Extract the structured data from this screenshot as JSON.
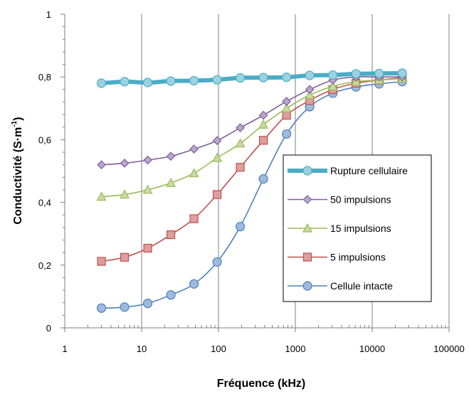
{
  "chart_data": {
    "type": "line",
    "xlabel": "Fréquence (kHz)",
    "ylabel_main": "Conductivité (S·m",
    "ylabel_sup": "-1",
    "ylabel_close": ")",
    "x_scale": "log",
    "xlim": [
      1,
      100000
    ],
    "ylim": [
      0,
      1
    ],
    "x_ticks": [
      1,
      10,
      100,
      1000,
      10000,
      100000
    ],
    "x_tick_labels": [
      "1",
      "10",
      "100",
      "1000",
      "10000",
      "100000"
    ],
    "y_ticks": [
      0,
      0.2,
      0.4,
      0.6,
      0.8,
      1
    ],
    "y_tick_labels": [
      "0",
      "0,2",
      "0,4",
      "0,6",
      "0,8",
      "1"
    ],
    "grid": "vertical major",
    "legend_position": "inside right",
    "x": [
      3,
      6,
      12,
      24,
      48,
      96,
      192,
      384,
      768,
      1536,
      3072,
      6144,
      12288,
      24576
    ],
    "series": [
      {
        "name": "Rupture cellulaire",
        "color": "#4bacc6",
        "marker": "circle-thick",
        "values": [
          0.78,
          0.785,
          0.782,
          0.787,
          0.788,
          0.791,
          0.797,
          0.798,
          0.799,
          0.805,
          0.806,
          0.81,
          0.811,
          0.812
        ]
      },
      {
        "name": "50 impulsions",
        "color": "#7f5f9f",
        "marker": "diamond",
        "values": [
          0.52,
          0.525,
          0.535,
          0.547,
          0.57,
          0.597,
          0.638,
          0.678,
          0.722,
          0.76,
          0.79,
          0.8,
          0.8,
          0.8
        ]
      },
      {
        "name": "15 impulsions",
        "color": "#9bbb59",
        "marker": "triangle",
        "values": [
          0.418,
          0.425,
          0.44,
          0.462,
          0.493,
          0.542,
          0.588,
          0.648,
          0.7,
          0.742,
          0.77,
          0.785,
          0.79,
          0.795
        ]
      },
      {
        "name": "5 impulsions",
        "color": "#c0504d",
        "marker": "square",
        "values": [
          0.212,
          0.225,
          0.254,
          0.297,
          0.348,
          0.425,
          0.512,
          0.598,
          0.678,
          0.725,
          0.76,
          0.78,
          0.79,
          0.798
        ]
      },
      {
        "name": "Cellule intacte",
        "color": "#4f81bd",
        "marker": "circle",
        "values": [
          0.063,
          0.066,
          0.078,
          0.105,
          0.14,
          0.21,
          0.323,
          0.475,
          0.618,
          0.705,
          0.748,
          0.768,
          0.778,
          0.785
        ]
      }
    ]
  }
}
